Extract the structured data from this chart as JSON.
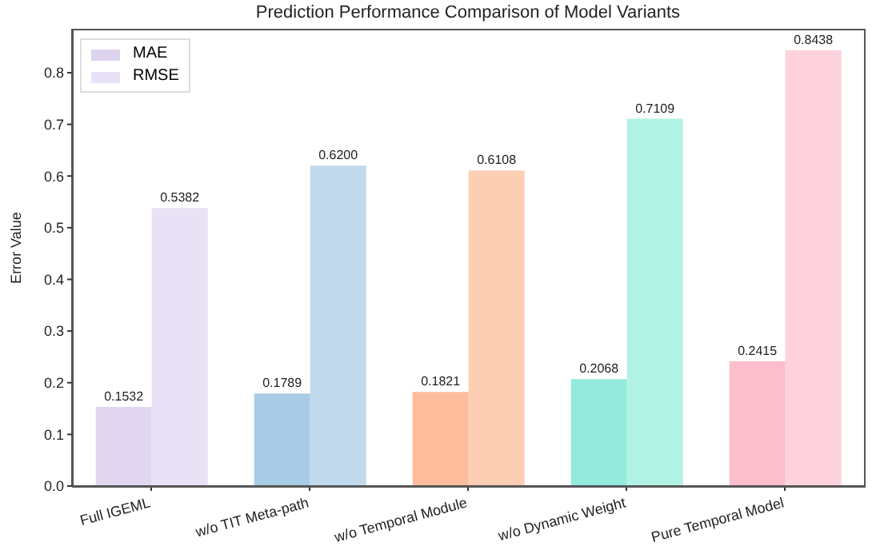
{
  "chart_data": {
    "type": "bar",
    "title": "Prediction Performance Comparison of Model Variants",
    "ylabel": "Error Value",
    "categories": [
      "Full IGEML",
      "w/o TIT Meta-path",
      "w/o Temporal Module",
      "w/o Dynamic Weight",
      "Pure Temporal Model"
    ],
    "series": [
      {
        "name": "MAE",
        "color": "#ddd3ef",
        "colors": [
          "#e0d6ef",
          "#a8cce6",
          "#fdbd9d",
          "#93eadc",
          "#fcbdcc"
        ],
        "values": [
          0.1532,
          0.1789,
          0.1821,
          0.2068,
          0.2415
        ],
        "value_labels": [
          "0.1532",
          "0.1789",
          "0.1821",
          "0.2068",
          "0.2415"
        ]
      },
      {
        "name": "RMSE",
        "color": "#e9e1f6",
        "colors": [
          "#e9e1f6",
          "#c0d9ed",
          "#fdcdb4",
          "#b0f2e4",
          "#fdd2dc"
        ],
        "values": [
          0.5382,
          0.62,
          0.6108,
          0.7109,
          0.8438
        ],
        "value_labels": [
          "0.5382",
          "0.6200",
          "0.6108",
          "0.7109",
          "0.8438"
        ]
      }
    ],
    "ylim": [
      0,
      0.885
    ],
    "yticks": [
      {
        "value": 0,
        "label": "0.0"
      },
      0.1,
      0.2,
      0.3,
      0.4,
      0.5,
      0.6,
      0.7,
      0.8
    ],
    "grid": false,
    "legend": "top left"
  }
}
